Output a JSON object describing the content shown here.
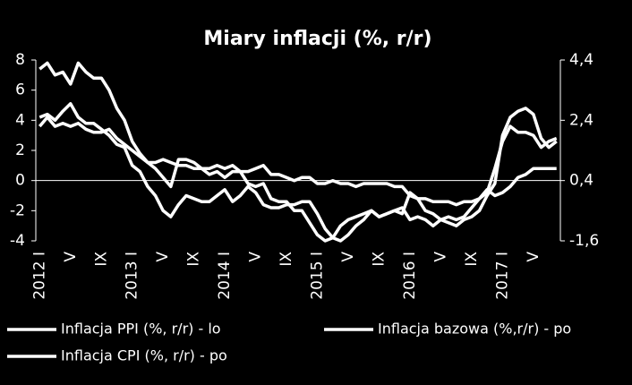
{
  "chart_data": {
    "type": "line",
    "title": "Miary inflacji (%, r/r)",
    "categories": [
      "2012 I",
      null,
      null,
      null,
      "V",
      null,
      null,
      null,
      "IX",
      null,
      null,
      null,
      "2013 I",
      null,
      null,
      null,
      "V",
      null,
      null,
      null,
      "IX",
      null,
      null,
      null,
      "2014 I",
      null,
      null,
      null,
      "V",
      null,
      null,
      null,
      "IX",
      null,
      null,
      null,
      "2015 I",
      null,
      null,
      null,
      "V",
      null,
      null,
      null,
      "IX",
      null,
      null,
      null,
      "2016 I",
      null,
      null,
      null,
      "V",
      null,
      null,
      null,
      "IX",
      null,
      null,
      null,
      "2017 I",
      null,
      null,
      null,
      "V",
      null,
      null,
      null
    ],
    "ylim": [
      -4,
      8
    ],
    "yticks": [
      -4,
      -2,
      0,
      2,
      4,
      6,
      8
    ],
    "y2lim": [
      -1.6,
      4.4
    ],
    "y2ticks": [
      {
        "value": 4.4,
        "label": "4,4"
      },
      {
        "value": 2.4,
        "label": "2,4"
      },
      {
        "value": 0.4,
        "label": "0,4"
      },
      {
        "value": -1.6,
        "label": "-1,6"
      }
    ],
    "series": [
      {
        "name": "Inflacja PPI (%, r/r) - lo",
        "color": "#ffffff",
        "values": [
          4.2,
          4.4,
          4.0,
          4.6,
          5.1,
          4.2,
          3.8,
          3.8,
          3.4,
          3.0,
          2.4,
          2.2,
          1.0,
          0.6,
          -0.4,
          -1.0,
          -2.0,
          -2.4,
          -1.6,
          -1.0,
          -1.2,
          -1.4,
          -1.4,
          -1.0,
          -0.6,
          -1.4,
          -1.0,
          -0.4,
          -0.8,
          -1.6,
          -1.8,
          -1.8,
          -1.6,
          -1.6,
          -1.4,
          -1.4,
          -2.2,
          -3.2,
          -3.8,
          -4.0,
          -3.6,
          -3.0,
          -2.6,
          -2.0,
          -2.4,
          -2.2,
          -2.0,
          -2.2,
          -0.8,
          -1.2,
          -2.0,
          -2.2,
          -2.6,
          -2.8,
          -3.0,
          -2.6,
          -2.4,
          -2.0,
          -1.0,
          -0.2,
          3.0,
          4.2,
          4.6,
          4.8,
          4.4,
          2.8,
          2.2,
          2.6
        ]
      },
      {
        "name": "Inflacja bazowa (%,r/r) - po",
        "color": "#ffffff",
        "axis": "y2",
        "values": [
          2.2,
          2.5,
          2.2,
          2.3,
          2.2,
          2.3,
          2.1,
          2.0,
          2.0,
          2.1,
          1.8,
          1.6,
          1.4,
          1.2,
          1.0,
          1.0,
          1.1,
          1.0,
          0.9,
          0.9,
          0.8,
          0.8,
          0.8,
          0.9,
          0.8,
          0.9,
          0.7,
          0.7,
          0.8,
          0.9,
          0.6,
          0.6,
          0.5,
          0.4,
          0.5,
          0.5,
          0.3,
          0.3,
          0.4,
          0.3,
          0.3,
          0.2,
          0.3,
          0.3,
          0.3,
          0.3,
          0.2,
          0.2,
          -0.1,
          -0.2,
          -0.2,
          -0.3,
          -0.3,
          -0.3,
          -0.4,
          -0.3,
          -0.3,
          -0.2,
          0.1,
          -0.1,
          0.0,
          0.2,
          0.5,
          0.6,
          0.8,
          0.8,
          0.8,
          0.8
        ]
      },
      {
        "name": "Inflacja CPI (%, r/r) - po",
        "color": "#ffffff",
        "axis": "y2",
        "values": [
          4.1,
          4.3,
          3.9,
          4.0,
          3.6,
          4.3,
          4.0,
          3.8,
          3.8,
          3.4,
          2.8,
          2.4,
          1.7,
          1.3,
          1.0,
          0.8,
          0.5,
          0.2,
          1.1,
          1.1,
          1.0,
          0.8,
          0.6,
          0.7,
          0.5,
          0.7,
          0.7,
          0.3,
          0.2,
          0.3,
          -0.2,
          -0.3,
          -0.3,
          -0.6,
          -0.6,
          -1.0,
          -1.4,
          -1.6,
          -1.5,
          -1.1,
          -0.9,
          -0.8,
          -0.7,
          -0.6,
          -0.8,
          -0.7,
          -0.6,
          -0.5,
          -0.9,
          -0.8,
          -0.9,
          -1.1,
          -0.9,
          -0.8,
          -0.9,
          -0.8,
          -0.5,
          -0.2,
          0.0,
          0.8,
          1.7,
          2.2,
          2.0,
          2.0,
          1.9,
          1.5,
          1.7,
          1.8
        ]
      }
    ]
  }
}
